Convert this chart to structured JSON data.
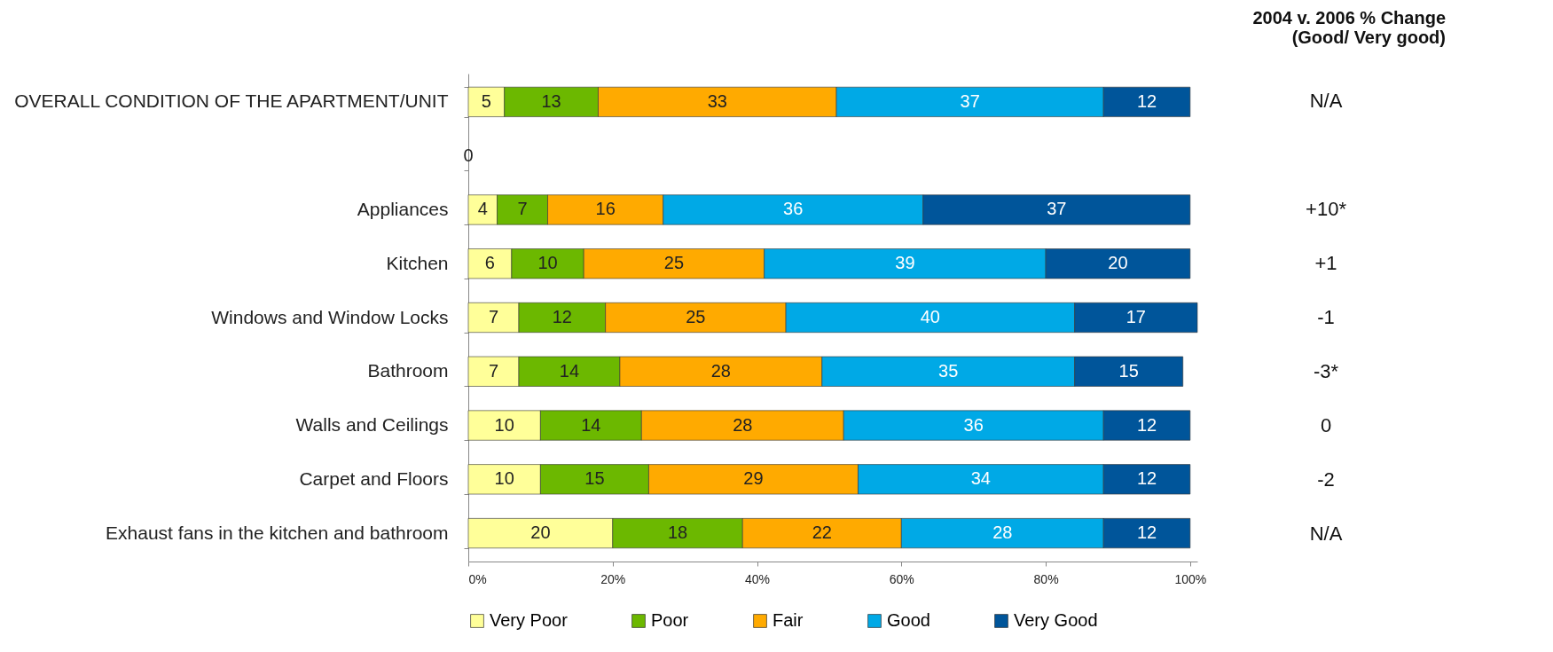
{
  "chart_data": {
    "type": "bar",
    "orientation": "horizontal",
    "stacked": true,
    "data_labels": true,
    "grid": false,
    "legend": "bottom",
    "categories": [
      "OVERALL CONDITION OF THE APARTMENT/UNIT",
      null,
      "Appliances",
      "Kitchen",
      "Windows and Window Locks",
      "Bathroom",
      "Walls and Ceilings",
      "Carpet and Floors",
      "Exhaust fans in the kitchen and bathroom"
    ],
    "series": [
      {
        "name": "Very Poor",
        "color": "#ffff99",
        "values": [
          5,
          0,
          4,
          6,
          7,
          7,
          10,
          10,
          20
        ]
      },
      {
        "name": "Poor",
        "color": "#6cb800",
        "values": [
          13,
          null,
          7,
          10,
          12,
          14,
          14,
          15,
          18
        ]
      },
      {
        "name": "Fair",
        "color": "#ffaa00",
        "values": [
          33,
          null,
          16,
          25,
          25,
          28,
          28,
          29,
          22
        ]
      },
      {
        "name": "Good",
        "color": "#00a9e6",
        "values": [
          37,
          null,
          36,
          39,
          40,
          35,
          36,
          34,
          28
        ]
      },
      {
        "name": "Very Good",
        "color": "#00559a",
        "values": [
          12,
          null,
          37,
          20,
          17,
          15,
          12,
          12,
          12
        ]
      }
    ],
    "xlim": [
      0,
      101
    ],
    "xticks": [
      {
        "value": 0,
        "label": "0%"
      },
      {
        "value": 20,
        "label": "20%"
      },
      {
        "value": 40,
        "label": "40%"
      },
      {
        "value": 60,
        "label": "60%"
      },
      {
        "value": 80,
        "label": "80%"
      },
      {
        "value": 100,
        "label": "100%"
      }
    ],
    "annotations": [
      "2004 v. 2006 % Change\n(Good/ Very good)",
      "N/A",
      "+10*",
      "+1",
      "-1",
      "-3*",
      "0",
      "-2",
      "N/A"
    ]
  }
}
